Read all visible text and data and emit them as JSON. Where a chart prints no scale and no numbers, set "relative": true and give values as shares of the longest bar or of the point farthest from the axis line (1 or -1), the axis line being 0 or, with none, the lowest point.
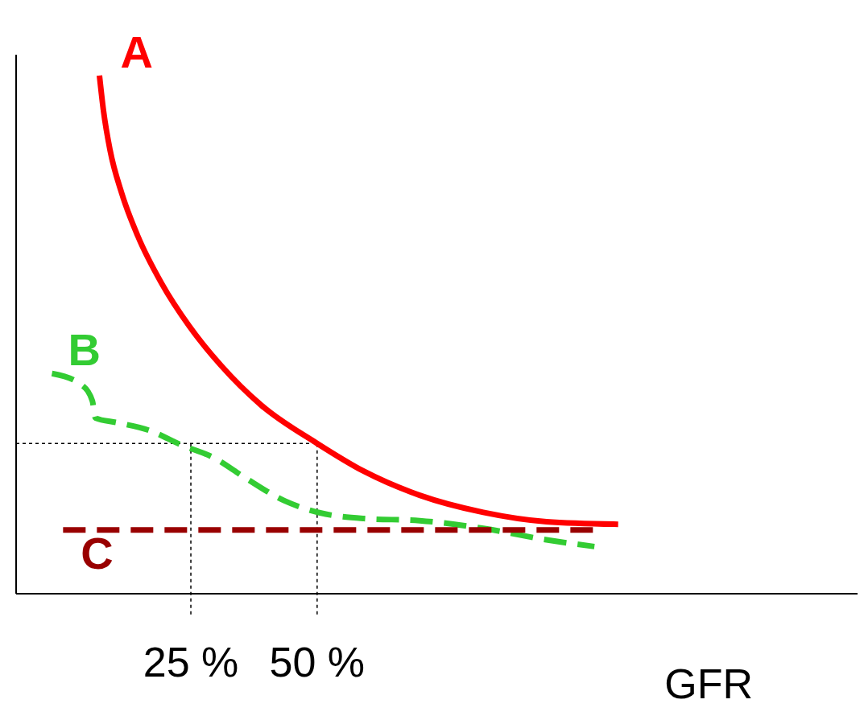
{
  "chart_data": {
    "type": "line",
    "relative": true,
    "xlabel": "GFR",
    "xlim": [
      -9.6,
      157
    ],
    "xticks": [
      {
        "value": 25,
        "label": "25 %"
      },
      {
        "value": 50,
        "label": "50 %"
      }
    ],
    "marker": "none",
    "series": [
      {
        "name": "A",
        "color": "#ff0000",
        "line_style": "solid",
        "x": [
          6.9,
          7.7,
          9.0,
          11.3,
          14.5,
          19.2,
          24.7,
          31.0,
          38.9,
          50.0,
          59.3,
          70.3,
          82.9,
          95.4,
          109.6
        ],
        "values": [
          1.0,
          0.932,
          0.856,
          0.773,
          0.69,
          0.599,
          0.516,
          0.44,
          0.364,
          0.29,
          0.236,
          0.19,
          0.157,
          0.139,
          0.134
        ]
      },
      {
        "name": "B",
        "color": "#33cc33",
        "line_style": "dashed",
        "x": [
          -2.5,
          3.5,
          5.5,
          6.1,
          10.5,
          16.8,
          23.1,
          29.4,
          35.7,
          43.6,
          50.6,
          59.3,
          70.3,
          82.9,
          95.4,
          104.9
        ],
        "values": [
          0.425,
          0.402,
          0.372,
          0.339,
          0.33,
          0.315,
          0.287,
          0.263,
          0.224,
          0.179,
          0.156,
          0.145,
          0.141,
          0.126,
          0.104,
          0.091
        ]
      },
      {
        "name": "C",
        "color": "#990000",
        "line_style": "dashed",
        "x": [
          -0.3,
          105.2
        ],
        "values": [
          0.123,
          0.123
        ]
      }
    ],
    "ref_lines": [
      {
        "axis": "x",
        "value": 25,
        "line_style": "dotted",
        "color": "#000000"
      },
      {
        "axis": "x",
        "value": 50,
        "line_style": "dotted",
        "color": "#000000"
      },
      {
        "axis": "y",
        "value": 0.29,
        "line_style": "dotted",
        "color": "#000000"
      }
    ]
  }
}
